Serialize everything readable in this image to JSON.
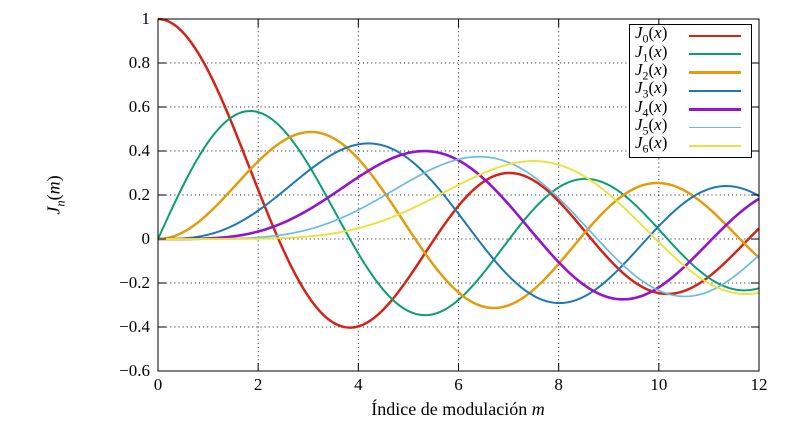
{
  "figure": {
    "background": "#ffffff",
    "border_color": "#000000",
    "grid_color": "#1a1a1a",
    "tick_color": "#000000"
  },
  "chart_data": {
    "type": "line",
    "title": "",
    "xlabel": {
      "text": "Índice de modulación",
      "var": "m"
    },
    "ylabel": {
      "base": "J",
      "sub": "n",
      "var": "m"
    },
    "xlim": [
      0,
      12
    ],
    "ylim": [
      -0.6,
      1
    ],
    "grid": "dotted",
    "legend_position": "top-right",
    "x_ticks": {
      "values": [
        0,
        2,
        4,
        6,
        8,
        10,
        12
      ],
      "labels": [
        "0",
        "2",
        "4",
        "6",
        "8",
        "10",
        "12"
      ]
    },
    "y_ticks": {
      "values": [
        1,
        0.8,
        0.6,
        0.4,
        0.2,
        0,
        -0.2,
        -0.4,
        -0.6
      ],
      "labels": [
        "1",
        "0.8",
        "0.6",
        "0.4",
        "0.2",
        "0",
        "−0.2",
        "−0.4",
        "−0.6"
      ]
    },
    "x_sample_points": [
      0,
      1,
      2,
      3,
      4,
      5,
      6,
      7,
      8,
      9,
      10,
      11,
      12
    ],
    "series": [
      {
        "name": "J0(x)",
        "legend": {
          "base": "J",
          "sub": "0",
          "var": "x"
        },
        "bessel_order": 0,
        "color": "#d62318",
        "stroke_width": 2.5,
        "values_at_x": [
          1.0,
          0.7652,
          0.2239,
          -0.2601,
          -0.3971,
          -0.1776,
          0.1506,
          0.3001,
          0.1717,
          -0.0903,
          -0.2459,
          -0.1712,
          0.0477
        ]
      },
      {
        "name": "J1(x)",
        "legend": {
          "base": "J",
          "sub": "1",
          "var": "x"
        },
        "bessel_order": 1,
        "color": "#0a9e73",
        "stroke_width": 2.0,
        "values_at_x": [
          0.0,
          0.4401,
          0.5767,
          0.3391,
          -0.066,
          -0.3276,
          -0.2767,
          -0.0047,
          0.2346,
          0.2453,
          0.0435,
          -0.1768,
          -0.2234
        ]
      },
      {
        "name": "J2(x)",
        "legend": {
          "base": "J",
          "sub": "2",
          "var": "x"
        },
        "bessel_order": 2,
        "color": "#e39c0e",
        "stroke_width": 2.5,
        "values_at_x": [
          0.0,
          0.1149,
          0.3528,
          0.4861,
          0.3641,
          0.0466,
          -0.2429,
          -0.3014,
          -0.113,
          0.1448,
          0.2546,
          0.139,
          -0.0849
        ]
      },
      {
        "name": "J3(x)",
        "legend": {
          "base": "J",
          "sub": "3",
          "var": "x"
        },
        "bessel_order": 3,
        "color": "#1d78b4",
        "stroke_width": 2.0,
        "values_at_x": [
          0.0,
          0.0196,
          0.1289,
          0.3091,
          0.4302,
          0.3648,
          0.1148,
          -0.1676,
          -0.2911,
          -0.1809,
          0.0584,
          0.2273,
          0.1951
        ]
      },
      {
        "name": "J4(x)",
        "legend": {
          "base": "J",
          "sub": "4",
          "var": "x"
        },
        "bessel_order": 4,
        "color": "#9413cc",
        "stroke_width": 2.6,
        "values_at_x": [
          0.0,
          0.0025,
          0.034,
          0.132,
          0.2811,
          0.3912,
          0.3576,
          0.1578,
          -0.1054,
          -0.2655,
          -0.2196,
          -0.015,
          0.1825
        ]
      },
      {
        "name": "J5(x)",
        "legend": {
          "base": "J",
          "sub": "5",
          "var": "x"
        },
        "bessel_order": 5,
        "color": "#69bbe2",
        "stroke_width": 1.7,
        "values_at_x": [
          0.0,
          0.0002,
          0.007,
          0.043,
          0.1321,
          0.2611,
          0.3621,
          0.3479,
          0.1858,
          -0.055,
          -0.2341,
          -0.2383,
          -0.0735
        ]
      },
      {
        "name": "J6(x)",
        "legend": {
          "base": "J",
          "sub": "6",
          "var": "x"
        },
        "bessel_order": 6,
        "color": "#e9e13c",
        "stroke_width": 1.9,
        "values_at_x": [
          0.0,
          0.0,
          0.0012,
          0.0114,
          0.0491,
          0.131,
          0.2458,
          0.3392,
          0.3376,
          0.2043,
          -0.0145,
          -0.2016,
          -0.2437
        ]
      }
    ]
  }
}
